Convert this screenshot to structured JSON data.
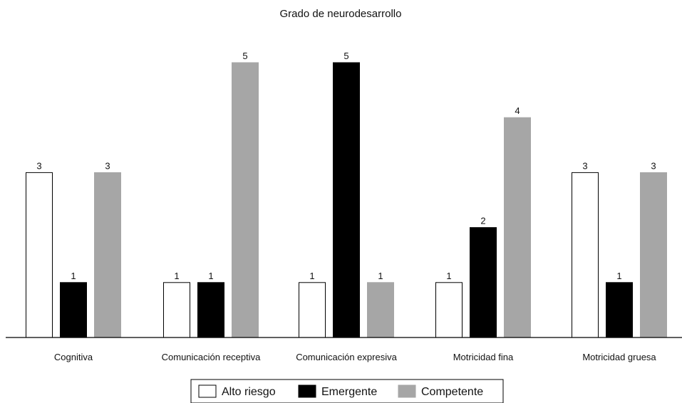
{
  "chart_data": {
    "type": "bar",
    "title": "Grado de neurodesarrollo",
    "categories": [
      "Cognitiva",
      "Comunicación receptiva",
      "Comunicación expresiva",
      "Motricidad fina",
      "Motricidad gruesa"
    ],
    "series": [
      {
        "name": "Alto riesgo",
        "values": [
          3,
          1,
          1,
          1,
          3
        ],
        "color": "#ffffff",
        "stroke": "#000000"
      },
      {
        "name": "Emergente",
        "values": [
          1,
          1,
          5,
          2,
          1
        ],
        "color": "#000000",
        "stroke": "#000000"
      },
      {
        "name": "Competente",
        "values": [
          3,
          5,
          1,
          4,
          3
        ],
        "color": "#a6a6a6",
        "stroke": "#a6a6a6"
      }
    ],
    "xlabel": "",
    "ylabel": "",
    "ylim": [
      0,
      5.1
    ],
    "grid": false,
    "legend_position": "bottom"
  }
}
